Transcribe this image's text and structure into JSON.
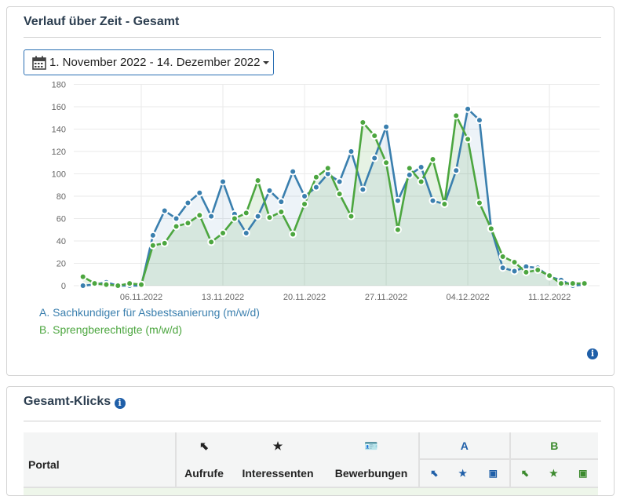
{
  "panel1": {
    "title": "Verlauf über Zeit - Gesamt",
    "date_range": "1. November 2022 - 14. Dezember 2022",
    "legend": [
      {
        "label": "A. Sachkundiger für Asbestsanierung (m/w/d)",
        "color": "#3a7fae"
      },
      {
        "label": "B. Sprengberechtigte (m/w/d)",
        "color": "#4ca63f"
      }
    ],
    "info_icon": "info-circle-icon"
  },
  "chart_data": {
    "type": "area",
    "title": "",
    "xlabel": "",
    "ylabel": "",
    "ylim": [
      0,
      180
    ],
    "yticks": [
      "0",
      "20",
      "40",
      "60",
      "80",
      "100",
      "120",
      "140",
      "160",
      "180"
    ],
    "xticks": [
      {
        "day": 5,
        "label": "06.11.2022"
      },
      {
        "day": 12,
        "label": "13.11.2022"
      },
      {
        "day": 19,
        "label": "20.11.2022"
      },
      {
        "day": 26,
        "label": "27.11.2022"
      },
      {
        "day": 33,
        "label": "04.12.2022"
      },
      {
        "day": 40,
        "label": "11.12.2022"
      }
    ],
    "x_start": "01.11.2022",
    "grid": true,
    "legend_position": "bottom-left",
    "series": [
      {
        "name": "A. Sachkundiger für Asbestsanierung (m/w/d)",
        "color": "#3a7fae",
        "values": [
          0,
          1,
          3,
          0,
          0,
          0,
          45,
          67,
          60,
          74,
          83,
          62,
          93,
          64,
          47,
          62,
          85,
          75,
          102,
          80,
          88,
          100,
          93,
          120,
          86,
          114,
          142,
          76,
          99,
          106,
          76,
          73,
          103,
          158,
          148,
          51,
          16,
          13,
          17,
          16,
          8,
          5,
          0,
          1
        ]
      },
      {
        "name": "B. Sprengberechtigte (m/w/d)",
        "color": "#4ca63f",
        "values": [
          8,
          2,
          1,
          0,
          2,
          1,
          36,
          38,
          53,
          56,
          63,
          39,
          47,
          60,
          65,
          94,
          61,
          66,
          46,
          73,
          97,
          105,
          82,
          62,
          146,
          134,
          110,
          50,
          105,
          93,
          113,
          73,
          152,
          131,
          74,
          51,
          26,
          21,
          12,
          14,
          9,
          2,
          2,
          2
        ]
      }
    ]
  },
  "panel2": {
    "title": "Gesamt-Klicks",
    "columns": {
      "portal": "Portal",
      "aufrufe": "Aufrufe",
      "interessenten": "Interessenten",
      "bewerbungen": "Bewerbungen",
      "group_a": "A",
      "group_b": "B"
    },
    "icons": [
      "cursor-icon",
      "star-icon",
      "id-card-icon"
    ],
    "color_a": "#1f5fa8",
    "color_b": "#3c8a2e"
  }
}
